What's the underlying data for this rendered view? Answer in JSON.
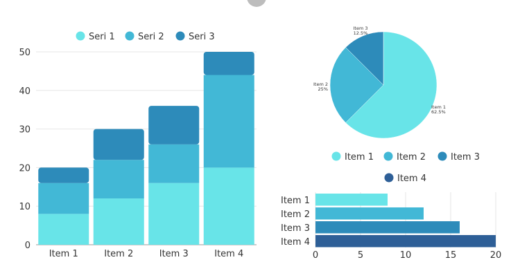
{
  "colors": {
    "c1": "#68e4e8",
    "c2": "#42b8d6",
    "c3": "#2d8bba",
    "c4": "#2e5f97"
  },
  "chart_data": [
    {
      "type": "bar",
      "stacked": true,
      "categories": [
        "Item 1",
        "Item 2",
        "Item 3",
        "Item 4"
      ],
      "series": [
        {
          "name": "Seri 1",
          "values": [
            8,
            12,
            16,
            20
          ]
        },
        {
          "name": "Seri 2",
          "values": [
            8,
            10,
            10,
            24
          ]
        },
        {
          "name": "Seri 3",
          "values": [
            4,
            8,
            10,
            6
          ]
        }
      ],
      "ylim": [
        0,
        50
      ],
      "yticks": [
        0,
        10,
        20,
        30,
        40,
        50
      ],
      "legend": "top",
      "grid": true
    },
    {
      "type": "pie",
      "slices": [
        {
          "label": "Item 1",
          "value": 62.5,
          "text": "62.5%"
        },
        {
          "label": "Item 2",
          "value": 25,
          "text": "25%"
        },
        {
          "label": "Item 3",
          "value": 12.5,
          "text": "12.5%"
        }
      ],
      "legend_entries": [
        "Item 1",
        "Item 2",
        "Item 3",
        "Item 4"
      ],
      "legend": "bottom"
    },
    {
      "type": "bar",
      "orientation": "horizontal",
      "categories": [
        "Item 1",
        "Item 2",
        "Item 3",
        "Item 4"
      ],
      "values": [
        8,
        12,
        16,
        20
      ],
      "xlim": [
        0,
        20
      ],
      "xticks": [
        0,
        5,
        10,
        15,
        20
      ],
      "grid": true
    }
  ]
}
